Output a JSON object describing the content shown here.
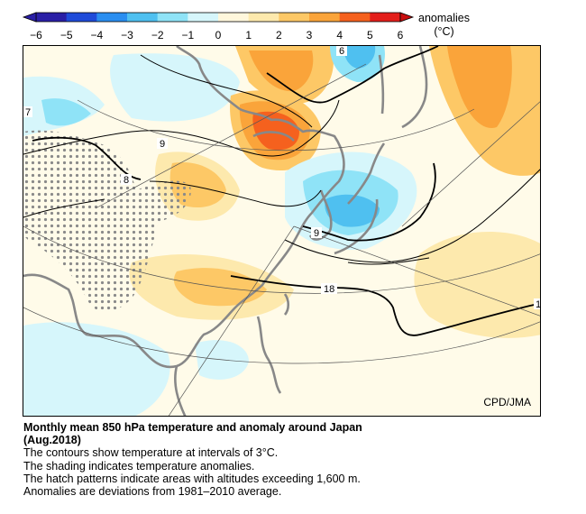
{
  "colorbar": {
    "ticks": [
      "−6",
      "−5",
      "−4",
      "−3",
      "−2",
      "−1",
      "0",
      "1",
      "2",
      "3",
      "4",
      "5",
      "6"
    ],
    "unit_title": "anomalies",
    "unit": "(°C)",
    "colors": [
      "#2a1fa6",
      "#1f4bd9",
      "#2a8ef0",
      "#4fc0f0",
      "#8fe3f7",
      "#d6f6fb",
      "#fff7dc",
      "#fde9ad",
      "#fdc866",
      "#faa43a",
      "#f5611e",
      "#e31e1a"
    ]
  },
  "map": {
    "credit": "CPD/JMA",
    "contour_labels": [
      "6",
      "7",
      "8",
      "9",
      "9",
      "18",
      "1"
    ]
  },
  "caption": {
    "title": "Monthly mean 850 hPa temperature and anomaly around Japan",
    "date": "(Aug.2018)",
    "lines": [
      "The contours show temperature at intervals of 3°C.",
      "The shading indicates temperature anomalies.",
      "The hatch patterns indicate areas with altitudes exceeding 1,600 m.",
      "Anomalies are deviations from 1981–2010 average."
    ]
  }
}
